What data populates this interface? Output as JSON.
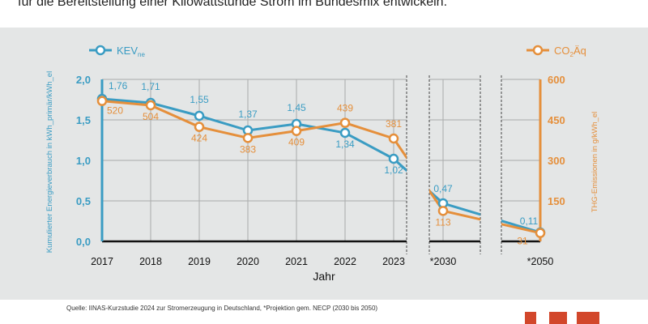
{
  "intro_text": "für die Bereitstellung einer Kilowattstunde Strom im Bundesmix entwickeln.",
  "source_text": "Quelle: IINAS-Kurzstudie 2024 zur Stromerzeugung in Deutschland, *Projektion gem. NECP (2030 bis 2050)",
  "colors": {
    "kev": "#3a9cc3",
    "co2": "#e58f3b",
    "panel": "#e4e6e6",
    "logo": "#d2472b"
  },
  "chart_data": {
    "type": "line",
    "xlabel": "Jahr",
    "categories": [
      "2017",
      "2018",
      "2019",
      "2020",
      "2021",
      "2022",
      "2023",
      "*2030",
      "*2050"
    ],
    "y_left": {
      "label": "Kumulierter Energieverbrauch in kWh_primär/kWh_el",
      "range": [
        0,
        2.0
      ],
      "ticks": [
        "0,0",
        "0,5",
        "1,0",
        "1,5",
        "2,0"
      ]
    },
    "y_right": {
      "label": "THG-Emissionen in g/kWh_el",
      "range": [
        0,
        600
      ],
      "ticks": [
        "150",
        "300",
        "450",
        "600"
      ]
    },
    "series": [
      {
        "name": "KEV",
        "name_sub": "ne",
        "axis": "left",
        "values": [
          1.76,
          1.71,
          1.55,
          1.37,
          1.45,
          1.34,
          1.02,
          0.47,
          0.11
        ],
        "labels": [
          "1,76",
          "1,71",
          "1,55",
          "1,37",
          "1,45",
          "1,34",
          "1,02",
          "0,47",
          "0,11"
        ]
      },
      {
        "name": "CO",
        "name_sub": "2",
        "name_rest": "Äq",
        "axis": "right",
        "values": [
          520,
          504,
          424,
          383,
          409,
          439,
          381,
          113,
          31
        ],
        "labels": [
          "520",
          "504",
          "424",
          "383",
          "409",
          "439",
          "381",
          "113",
          "31"
        ]
      }
    ],
    "grid": true,
    "legend": "top"
  }
}
